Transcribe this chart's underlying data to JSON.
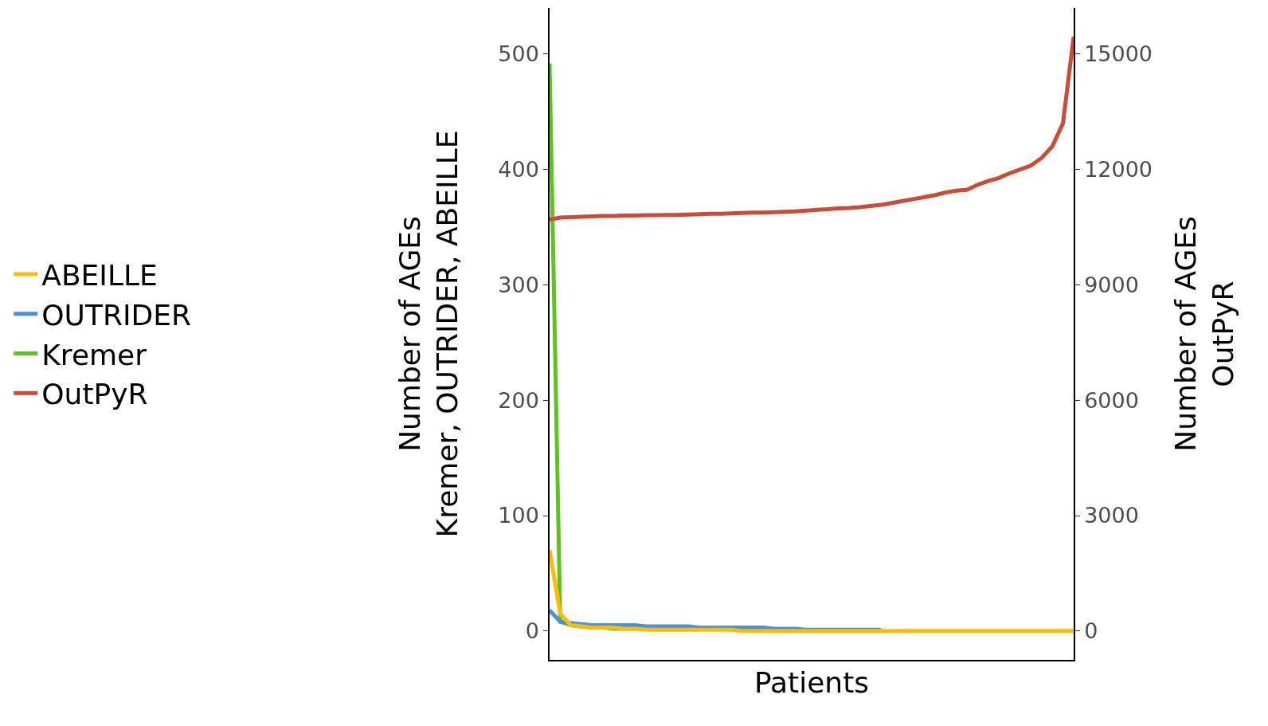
{
  "chart_data": {
    "type": "line",
    "xlabel": "Patients",
    "ylabel": "Number of AGEs\nKremer, OUTRIDER, ABEILLE",
    "y2label": "Number of AGEs\nOutPyR",
    "categories": [
      null,
      null,
      null,
      null,
      null,
      null,
      null,
      null,
      null,
      null,
      null,
      null,
      null,
      null,
      null,
      null,
      null,
      null,
      null,
      null,
      null,
      null,
      null,
      null,
      null,
      null,
      null,
      null,
      null,
      null,
      null,
      null,
      null,
      null,
      null,
      null,
      null,
      null,
      null,
      null,
      null,
      null,
      null,
      null,
      null,
      null,
      null,
      null,
      null,
      null
    ],
    "series": [
      {
        "name": "ABEILLE",
        "color": "#fbbc05",
        "values": [
          70,
          15,
          5,
          4,
          3,
          3,
          3,
          2,
          2,
          1,
          1,
          1,
          1,
          1,
          1,
          1,
          1,
          1,
          0,
          0,
          0,
          0,
          0,
          0,
          0,
          0,
          0,
          0,
          0,
          0,
          0,
          0,
          0,
          0,
          0,
          0,
          0,
          0,
          0,
          0,
          0,
          0,
          0,
          0,
          0,
          0,
          0,
          0,
          0,
          0
        ]
      },
      {
        "name": "OUTRIDER",
        "color": "#4a90e2",
        "values": [
          18,
          8,
          7,
          6,
          5,
          5,
          5,
          5,
          5,
          4,
          4,
          4,
          4,
          4,
          3,
          3,
          3,
          3,
          3,
          3,
          3,
          2,
          2,
          2,
          1,
          1,
          1,
          1,
          1,
          1,
          1,
          1,
          null,
          null,
          null,
          null,
          null,
          null,
          null,
          null,
          null,
          null,
          null,
          null,
          null,
          null,
          null,
          null,
          null,
          null
        ]
      },
      {
        "name": "Kremer",
        "color": "#5cc41a",
        "values": [
          492,
          8,
          5,
          4,
          3,
          3,
          2,
          2,
          2,
          null,
          null,
          null,
          null,
          null,
          null,
          null,
          null,
          null,
          null,
          null,
          null,
          null,
          null,
          null,
          null,
          null,
          null,
          null,
          null,
          null,
          null,
          null,
          null,
          null,
          null,
          null,
          null,
          null,
          null,
          null,
          null,
          null,
          null,
          null,
          null,
          null,
          null,
          null,
          null,
          null
        ]
      },
      {
        "name": "OutPyR",
        "color": "#cc4b37",
        "axis": "y2",
        "values": [
          10700,
          10750,
          10760,
          10770,
          10780,
          10790,
          10790,
          10800,
          10800,
          10810,
          10810,
          10820,
          10820,
          10830,
          10840,
          10850,
          10850,
          10860,
          10870,
          10880,
          10880,
          10890,
          10900,
          10910,
          10930,
          10950,
          10970,
          10990,
          11000,
          11020,
          11050,
          11080,
          11130,
          11180,
          11230,
          11280,
          11330,
          11400,
          11450,
          11470,
          11600,
          11700,
          11780,
          11900,
          12000,
          12100,
          12300,
          12600,
          13200,
          15450
        ]
      }
    ],
    "ylim": [
      -25,
      540
    ],
    "yticks": [
      0,
      100,
      200,
      300,
      400,
      500
    ],
    "y2lim": [
      -750,
      16200
    ],
    "y2ticks": [
      0,
      3000,
      6000,
      9000,
      12000,
      15000
    ],
    "tick_labels": "y",
    "legend": "left",
    "marker": "none",
    "line_style": "solid"
  }
}
